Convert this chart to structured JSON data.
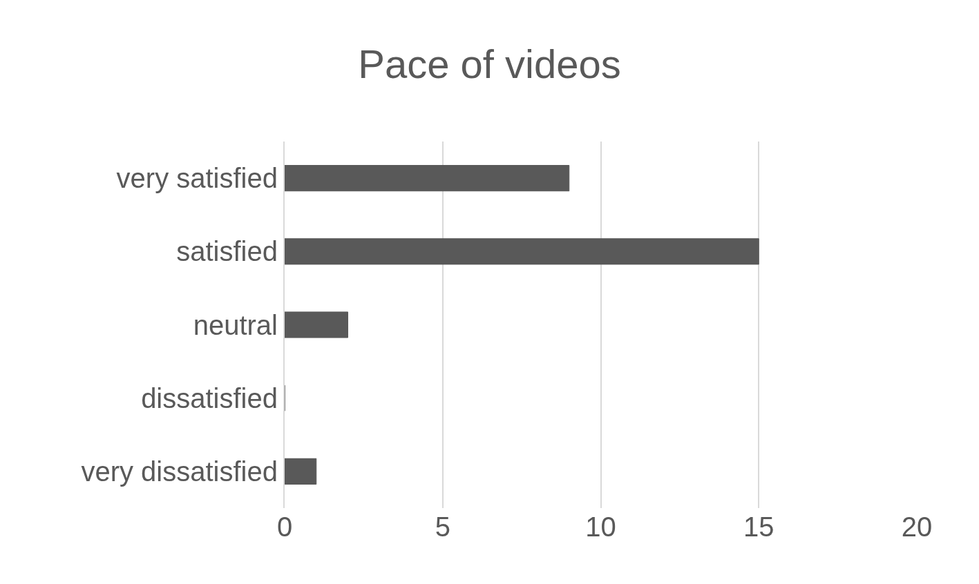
{
  "chart_data": {
    "type": "bar",
    "orientation": "horizontal",
    "title": "Pace of videos",
    "categories": [
      "very satisfied",
      "satisfied",
      "neutral",
      "dissatisfied",
      "very dissatisfied"
    ],
    "values": [
      9,
      15,
      2,
      0,
      1
    ],
    "color": "#595959",
    "xlim": [
      0,
      20
    ],
    "xticks": [
      0,
      5,
      10,
      15,
      20
    ],
    "grid": "x"
  }
}
